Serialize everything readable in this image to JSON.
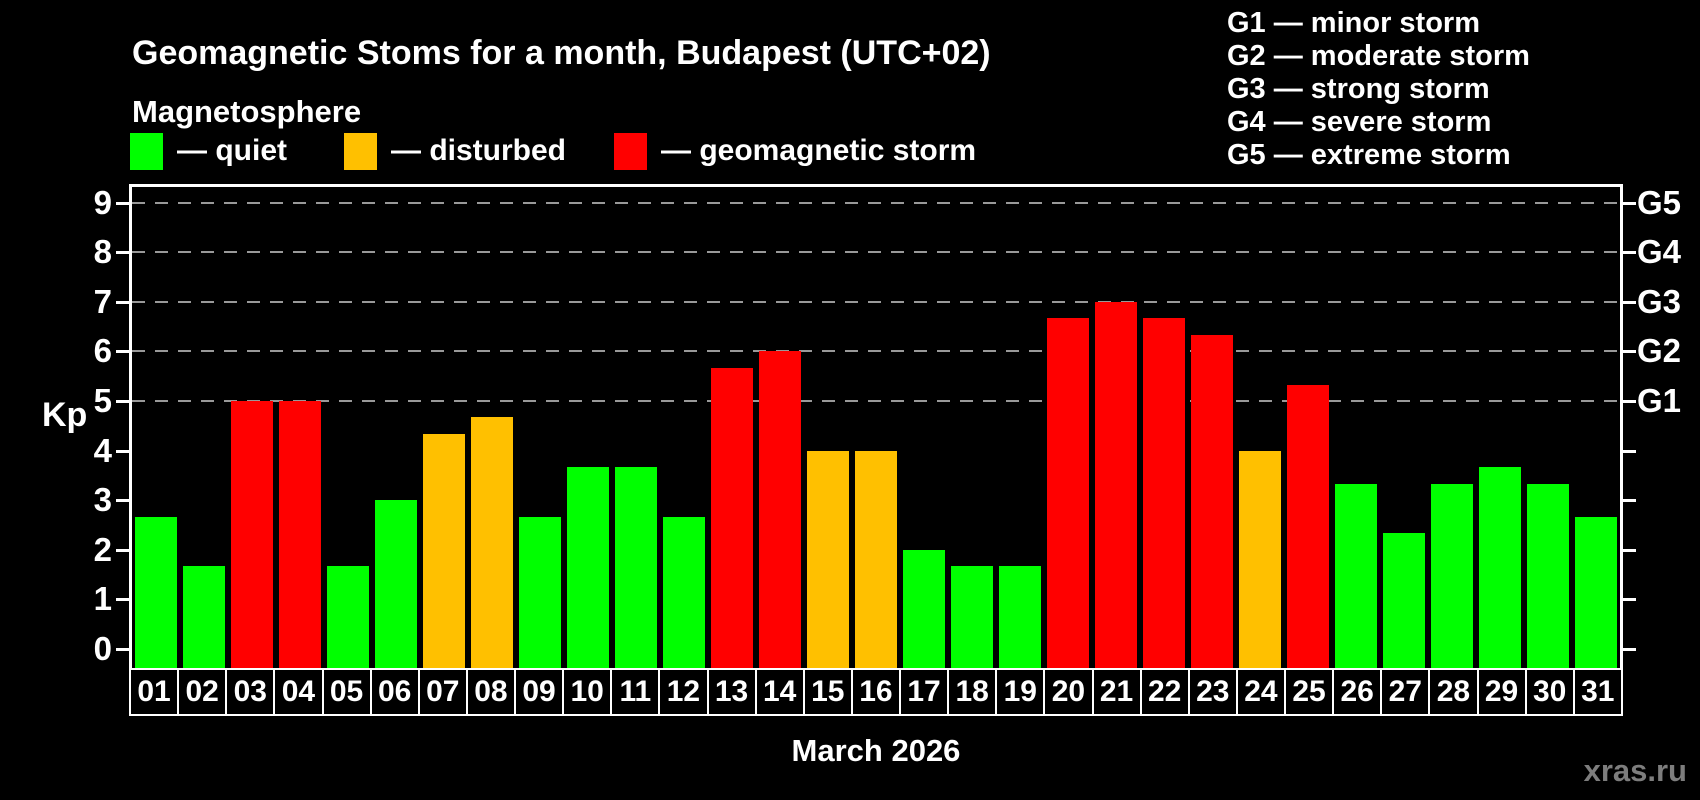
{
  "title": "Geomagnetic Stoms for a month, Budapest (UTC+02)",
  "magnetosphere": {
    "heading": "Magnetosphere",
    "legend": [
      {
        "status": "quiet",
        "label": "— quiet"
      },
      {
        "status": "disturbed",
        "label": "— disturbed"
      },
      {
        "status": "storm",
        "label": "— geomagnetic storm"
      }
    ]
  },
  "storm_scale_legend": [
    "G1 — minor storm",
    "G2 — moderate storm",
    "G3 — strong storm",
    "G4 — severe storm",
    "G5 — extreme storm"
  ],
  "watermark": "xras.ru",
  "chart_data": {
    "type": "bar",
    "title": "Geomagnetic Stoms for a month, Budapest (UTC+02)",
    "subtitle": "Magnetosphere",
    "xlabel": "March 2026",
    "ylabel": "Kp",
    "ylim": [
      0,
      9
    ],
    "grid": "horizontal dashed gridlines at Kp 5,6,7,8,9 only; legend position top; bars colored by status",
    "categories": [
      "01",
      "02",
      "03",
      "04",
      "05",
      "06",
      "07",
      "08",
      "09",
      "10",
      "11",
      "12",
      "13",
      "14",
      "15",
      "16",
      "17",
      "18",
      "19",
      "20",
      "21",
      "22",
      "23",
      "24",
      "25",
      "26",
      "27",
      "28",
      "29",
      "30",
      "31"
    ],
    "values": [
      2.67,
      1.67,
      5,
      5,
      1.67,
      3,
      4.33,
      4.67,
      2.67,
      3.67,
      3.67,
      2.67,
      5.67,
      6,
      4,
      4,
      2,
      1.67,
      1.67,
      6.67,
      7,
      6.67,
      6.33,
      4,
      5.33,
      3.33,
      2.33,
      3.33,
      3.67,
      3.33,
      2.67
    ],
    "statuses": [
      "quiet",
      "quiet",
      "storm",
      "storm",
      "quiet",
      "quiet",
      "disturbed",
      "disturbed",
      "quiet",
      "quiet",
      "quiet",
      "quiet",
      "storm",
      "storm",
      "disturbed",
      "disturbed",
      "quiet",
      "quiet",
      "quiet",
      "storm",
      "storm",
      "storm",
      "storm",
      "disturbed",
      "storm",
      "quiet",
      "quiet",
      "quiet",
      "quiet",
      "quiet",
      "quiet"
    ],
    "left_ticks": [
      0,
      1,
      2,
      3,
      4,
      5,
      6,
      7,
      8,
      9
    ],
    "gridlines": [
      5,
      6,
      7,
      8,
      9
    ],
    "right_axis": [
      {
        "kp": 5,
        "label": "G1"
      },
      {
        "kp": 6,
        "label": "G2"
      },
      {
        "kp": 7,
        "label": "G3"
      },
      {
        "kp": 8,
        "label": "G4"
      },
      {
        "kp": 9,
        "label": "G5"
      }
    ],
    "colors": {
      "quiet": "#00ff00",
      "disturbed": "#ffc000",
      "storm": "#ff0000",
      "axis": "#ffffff",
      "grid": "#999999",
      "background": "#000000",
      "watermark": "#7d7d7d"
    }
  }
}
